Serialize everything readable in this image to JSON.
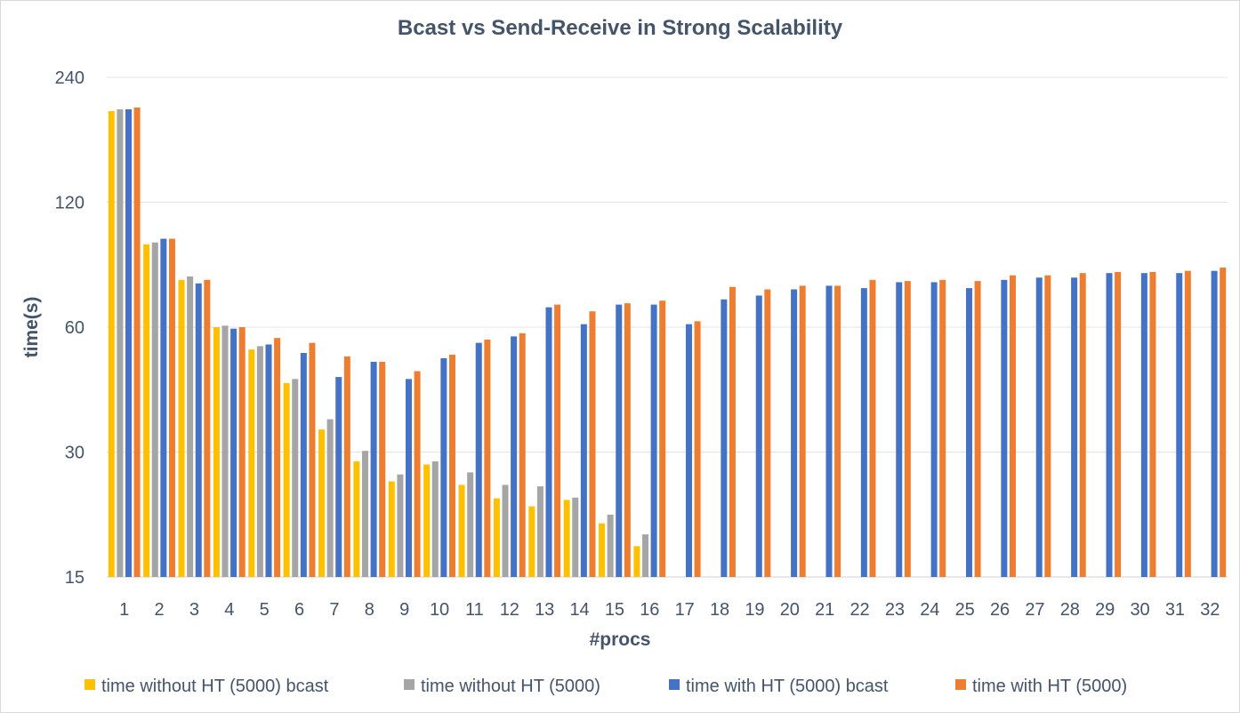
{
  "chart_data": {
    "type": "bar",
    "title": "Bcast vs Send-Receive in Strong Scalability",
    "xlabel": "#procs",
    "ylabel": "time(s)",
    "yscale": "log2",
    "ylim": [
      15,
      240
    ],
    "yticks": [
      15,
      30,
      60,
      120,
      240
    ],
    "grid": true,
    "legend_position": "bottom",
    "categories": [
      "1",
      "2",
      "3",
      "4",
      "5",
      "6",
      "7",
      "8",
      "9",
      "10",
      "11",
      "12",
      "13",
      "14",
      "15",
      "16",
      "17",
      "18",
      "19",
      "20",
      "21",
      "22",
      "23",
      "24",
      "25",
      "26",
      "27",
      "28",
      "29",
      "30",
      "31",
      "32"
    ],
    "series": [
      {
        "name": "time without HT (5000) bcast",
        "color": "#ffc000",
        "values": [
          199,
          95,
          78,
          60,
          53,
          44,
          34,
          28.5,
          25.5,
          28,
          25,
          23.2,
          22.2,
          23,
          20.2,
          17.8,
          null,
          null,
          null,
          null,
          null,
          null,
          null,
          null,
          null,
          null,
          null,
          null,
          null,
          null,
          null,
          null
        ]
      },
      {
        "name": "time without HT (5000)",
        "color": "#a5a5a5",
        "values": [
          201,
          96,
          79.5,
          60.5,
          54,
          45,
          36,
          30.2,
          26.5,
          28.5,
          26.8,
          25,
          24.8,
          23.3,
          21.2,
          19,
          null,
          null,
          null,
          null,
          null,
          null,
          null,
          null,
          null,
          null,
          null,
          null,
          null,
          null,
          null,
          null
        ]
      },
      {
        "name": "time with HT (5000) bcast",
        "color": "#4472c4",
        "values": [
          201,
          98,
          76.5,
          59.5,
          54.5,
          52,
          45.5,
          49.5,
          45,
          50.5,
          55,
          57,
          67,
          61,
          68,
          68,
          61,
          70,
          71.5,
          74,
          75.5,
          74.5,
          77,
          77,
          74.5,
          78,
          79,
          79,
          81,
          81,
          81,
          82
        ]
      },
      {
        "name": "time with HT (5000)",
        "color": "#ed7d31",
        "values": [
          203,
          98,
          78,
          60,
          56.5,
          55,
          51,
          49.5,
          47,
          51.5,
          56,
          58,
          68,
          65.5,
          68.5,
          69.5,
          62,
          75,
          74,
          75.5,
          75.5,
          78,
          77.5,
          78,
          77.5,
          80,
          80,
          81,
          81.5,
          81.5,
          82,
          83.5
        ]
      }
    ]
  }
}
